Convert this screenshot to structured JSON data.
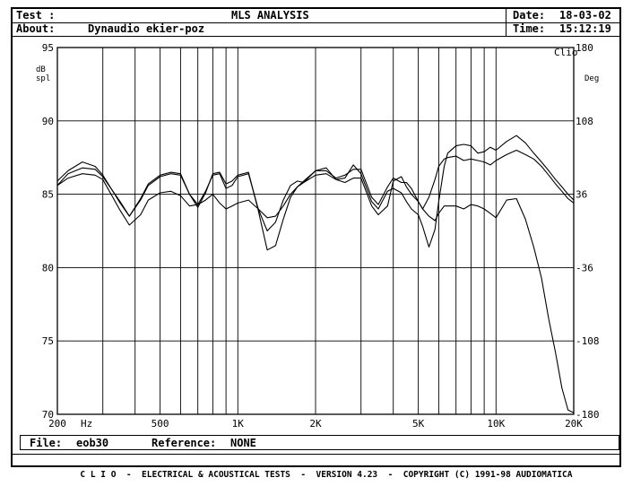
{
  "header": {
    "test_label": "Test :",
    "title": "MLS ANALYSIS",
    "about_label": "About:",
    "about_value": "Dynaudio ekier-poz",
    "date_label": "Date:",
    "date_value": "18-03-02",
    "time_label": "Time:",
    "time_value": "15:12:19"
  },
  "footer": {
    "file_label": "File:",
    "file_value": "eob30",
    "reference_label": "Reference:",
    "reference_value": "NONE",
    "banner": "C L I O  -  ELECTRICAL & ACOUSTICAL TESTS  -  VERSION 4.23  -  COPYRIGHT (C) 1991-98 AUDIOMATICA"
  },
  "chart_data": {
    "type": "line",
    "corner_label": "Clio",
    "y_left_unit_top": "dB",
    "y_left_unit_bottom": "spl",
    "y_right_unit": "Deg",
    "x_unit": "Hz",
    "x_scale": "log",
    "xlim": [
      200,
      20000
    ],
    "ylim": [
      70,
      95
    ],
    "y2lim": [
      -180,
      180
    ],
    "y_ticks": [
      "95",
      "90",
      "85",
      "80",
      "75",
      "70"
    ],
    "y_tick_values": [
      95,
      90,
      85,
      80,
      75,
      70
    ],
    "y2_ticks": [
      "180",
      "108",
      "36",
      "-36",
      "-108",
      "-180"
    ],
    "y2_tick_values": [
      180,
      108,
      36,
      -36,
      -108,
      -180
    ],
    "x_ticks": [
      "200",
      "500",
      "1K",
      "2K",
      "5K",
      "10K",
      "20K"
    ],
    "x_tick_values": [
      200,
      500,
      1000,
      2000,
      5000,
      10000,
      20000
    ],
    "grid": true,
    "series": [
      {
        "x": [
          200,
          220,
          250,
          280,
          300,
          350,
          380,
          420,
          450,
          500,
          550,
          600,
          650,
          700,
          750,
          800,
          850,
          900,
          950,
          1000,
          1100,
          1200,
          1300,
          1400,
          1500,
          1600,
          1700,
          1800,
          2000,
          2200,
          2400,
          2600,
          2800,
          3000,
          3300,
          3500,
          3800,
          4000,
          4300,
          4500,
          4700,
          5000,
          5200,
          5500,
          5800,
          6000,
          6300,
          6500,
          7000,
          7500,
          8000,
          8500,
          9000,
          9500,
          10000,
          11000,
          12000,
          13000,
          14000,
          15000,
          16000,
          17000,
          18000,
          19000,
          20000
        ],
        "values": [
          85.6,
          86.4,
          86.8,
          86.7,
          86.2,
          84.5,
          83.5,
          84.6,
          85.6,
          86.2,
          86.4,
          86.3,
          85.0,
          84.3,
          85.2,
          86.3,
          86.4,
          85.4,
          85.6,
          86.2,
          86.4,
          84.0,
          82.5,
          83.1,
          84.6,
          85.6,
          85.9,
          85.8,
          86.6,
          86.6,
          86.1,
          86.3,
          86.7,
          86.7,
          84.8,
          84.3,
          85.5,
          86.1,
          85.8,
          85.8,
          85.4,
          84.5,
          84.0,
          84.8,
          86.0,
          86.9,
          87.4,
          87.5,
          87.6,
          87.3,
          87.4,
          87.3,
          87.2,
          87.0,
          87.3,
          87.7,
          88.0,
          87.7,
          87.4,
          86.9,
          86.3,
          85.7,
          85.2,
          84.7,
          84.4
        ]
      },
      {
        "x": [
          200,
          220,
          250,
          280,
          300,
          350,
          380,
          420,
          450,
          500,
          550,
          600,
          650,
          700,
          750,
          800,
          850,
          900,
          950,
          1000,
          1100,
          1200,
          1300,
          1400,
          1500,
          1600,
          1700,
          1800,
          2000,
          2200,
          2400,
          2600,
          2800,
          3000,
          3300,
          3500,
          3800,
          4000,
          4300,
          4500,
          4700,
          5000,
          5200,
          5500,
          5800,
          6000,
          6300,
          6500,
          7000,
          7500,
          8000,
          8500,
          9000,
          9500,
          10000,
          11000,
          12000,
          13000,
          14000,
          15000,
          16000,
          17000,
          18000,
          19000,
          20000
        ],
        "values": [
          85.9,
          86.6,
          87.2,
          86.9,
          86.3,
          84.4,
          83.5,
          84.7,
          85.7,
          86.3,
          86.5,
          86.4,
          85.0,
          84.1,
          85.1,
          86.4,
          86.5,
          85.7,
          85.9,
          86.3,
          86.5,
          83.9,
          81.2,
          81.5,
          83.3,
          84.8,
          85.5,
          85.9,
          86.6,
          86.8,
          86.0,
          86.1,
          87.0,
          86.4,
          84.5,
          84.0,
          85.2,
          85.4,
          85.1,
          84.5,
          84.0,
          83.6,
          82.8,
          81.4,
          82.6,
          84.5,
          86.9,
          87.8,
          88.3,
          88.4,
          88.3,
          87.8,
          87.9,
          88.2,
          88.0,
          88.6,
          89.0,
          88.5,
          87.8,
          87.2,
          86.6,
          86.0,
          85.5,
          85.0,
          84.6
        ]
      },
      {
        "x": [
          200,
          220,
          250,
          280,
          300,
          350,
          380,
          420,
          450,
          500,
          550,
          600,
          650,
          700,
          750,
          800,
          850,
          900,
          950,
          1000,
          1100,
          1200,
          1300,
          1400,
          1500,
          1600,
          1700,
          1800,
          2000,
          2200,
          2400,
          2600,
          2800,
          3000,
          3300,
          3500,
          3800,
          4000,
          4300,
          4500,
          4700,
          5000,
          5200,
          5500,
          5800,
          6000,
          6300,
          6500,
          7000,
          7500,
          8000,
          8500,
          9000,
          9500,
          10000,
          11000,
          12000,
          13000,
          14000,
          15000,
          16000,
          17000,
          18000,
          19000,
          20000
        ],
        "values": [
          85.6,
          86.1,
          86.4,
          86.3,
          86.0,
          83.9,
          82.9,
          83.6,
          84.6,
          85.1,
          85.2,
          84.9,
          84.2,
          84.3,
          84.6,
          85.0,
          84.4,
          84.0,
          84.2,
          84.4,
          84.6,
          84.0,
          83.4,
          83.5,
          84.2,
          85.0,
          85.5,
          85.8,
          86.3,
          86.4,
          86.0,
          85.8,
          86.1,
          86.1,
          84.2,
          83.6,
          84.2,
          85.9,
          86.2,
          85.5,
          85.0,
          84.5,
          84.0,
          83.5,
          83.2,
          83.7,
          84.2,
          84.2,
          84.2,
          84.0,
          84.3,
          84.2,
          84.0,
          83.7,
          83.4,
          84.6,
          84.7,
          83.3,
          81.4,
          79.3,
          76.5,
          74.2,
          71.8,
          70.3,
          70.1
        ]
      }
    ]
  }
}
